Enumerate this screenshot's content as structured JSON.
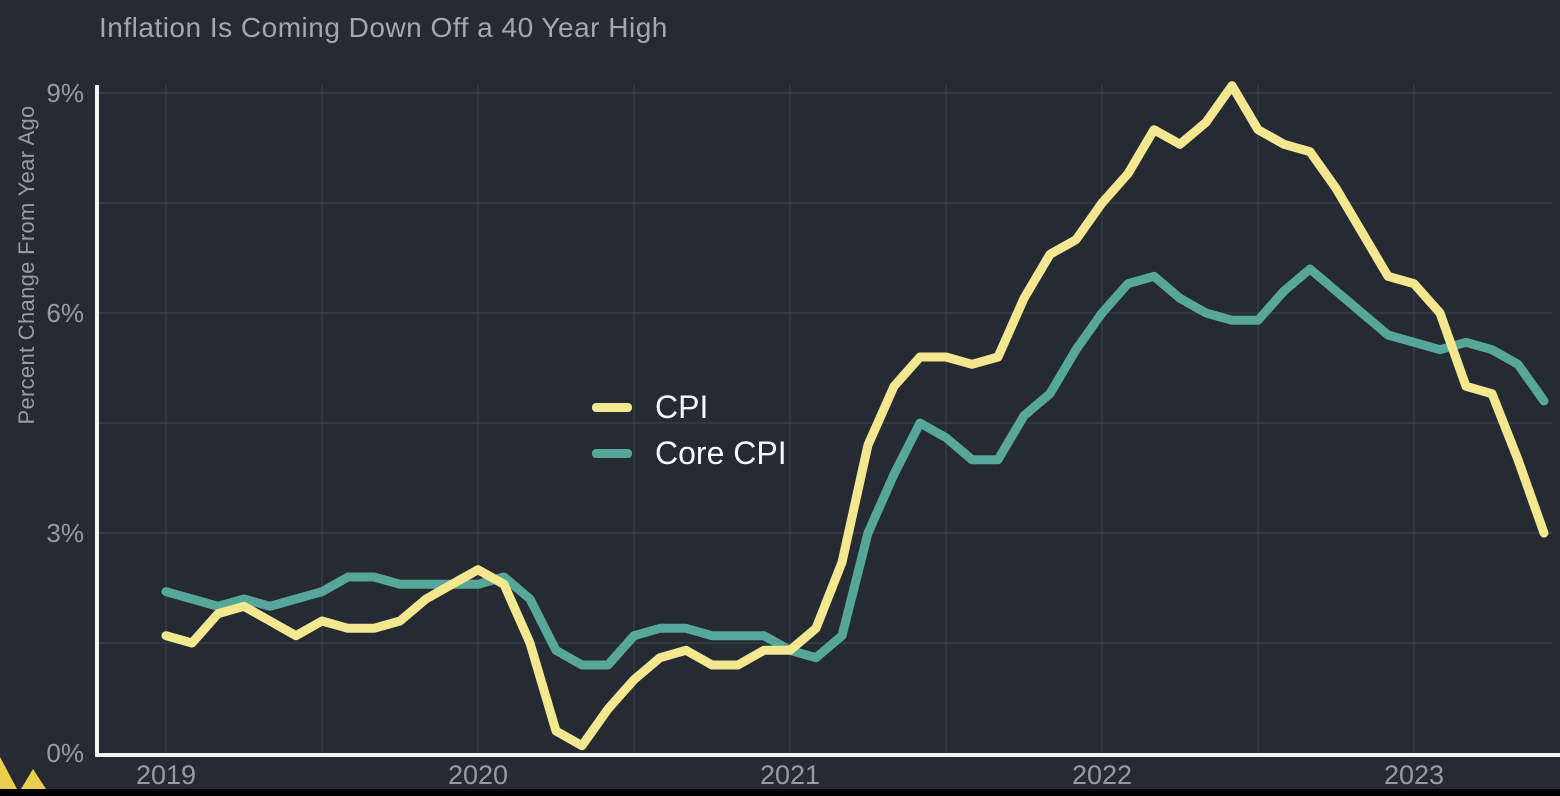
{
  "title": "Inflation Is Coming Down Off a 40 Year High",
  "colors": {
    "background": "#252A33",
    "bottom_border": "#000000",
    "gridline": "#3A4048",
    "axis": "#F4F4F2",
    "title_text": "#A2A8B0",
    "tick_text": "#969CA6",
    "legend_text": "#F7F8F8",
    "cpi_line": "#F3E88F",
    "core_cpi_line": "#57A69A",
    "corner_artifact": "#E9CF4D"
  },
  "legend": {
    "items": [
      {
        "label": "CPI",
        "color": "#F3E88F"
      },
      {
        "label": "Core CPI",
        "color": "#57A69A"
      }
    ]
  },
  "chart_data": {
    "type": "line",
    "title": "Inflation Is Coming Down Off a 40 Year High",
    "xlabel": "",
    "ylabel": "Percent Change From Year Ago",
    "x_frequency": "monthly",
    "x_range": [
      "2019-01",
      "2023-06"
    ],
    "x_tick_labels": [
      "2019",
      "2020",
      "2021",
      "2022",
      "2023"
    ],
    "y_ticks": [
      0,
      3,
      6,
      9
    ],
    "y_tick_labels": [
      "0%",
      "3%",
      "6%",
      "9%"
    ],
    "ylim": [
      0,
      9.35
    ],
    "grid": true,
    "minor_gridlines_y": [
      1.5,
      4.5,
      7.5
    ],
    "vertical_gridline_interval_months": 6,
    "legend_position": "inside-center-left",
    "series": [
      {
        "name": "CPI",
        "color": "#F3E88F",
        "values": [
          1.6,
          1.5,
          1.9,
          2.0,
          1.8,
          1.6,
          1.8,
          1.7,
          1.7,
          1.8,
          2.1,
          2.3,
          2.5,
          2.3,
          1.5,
          0.3,
          0.1,
          0.6,
          1.0,
          1.3,
          1.4,
          1.2,
          1.2,
          1.4,
          1.4,
          1.7,
          2.6,
          4.2,
          5.0,
          5.4,
          5.4,
          5.3,
          5.4,
          6.2,
          6.8,
          7.0,
          7.5,
          7.9,
          8.5,
          8.3,
          8.6,
          9.1,
          8.5,
          8.3,
          8.2,
          7.7,
          7.1,
          6.5,
          6.4,
          6.0,
          5.0,
          4.9,
          4.0,
          3.0
        ]
      },
      {
        "name": "Core CPI",
        "color": "#57A69A",
        "values": [
          2.2,
          2.1,
          2.0,
          2.1,
          2.0,
          2.1,
          2.2,
          2.4,
          2.4,
          2.3,
          2.3,
          2.3,
          2.3,
          2.4,
          2.1,
          1.4,
          1.2,
          1.2,
          1.6,
          1.7,
          1.7,
          1.6,
          1.6,
          1.6,
          1.4,
          1.3,
          1.6,
          3.0,
          3.8,
          4.5,
          4.3,
          4.0,
          4.0,
          4.6,
          4.9,
          5.5,
          6.0,
          6.4,
          6.5,
          6.2,
          6.0,
          5.9,
          5.9,
          6.3,
          6.6,
          6.3,
          6.0,
          5.7,
          5.6,
          5.5,
          5.6,
          5.5,
          5.3,
          4.8
        ]
      }
    ]
  }
}
